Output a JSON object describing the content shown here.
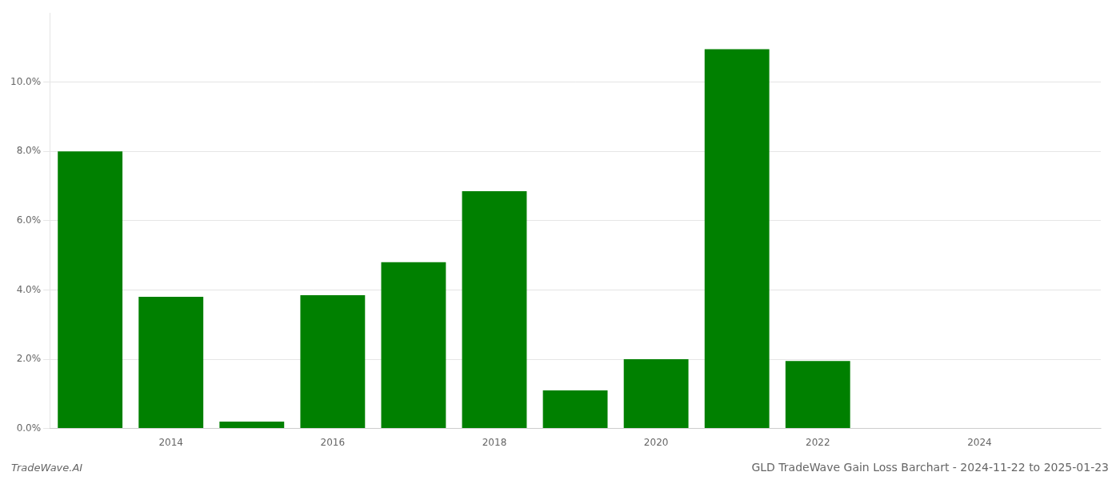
{
  "chart_data": {
    "type": "bar",
    "title": "GLD TradeWave Gain Loss Barchart - 2024-11-22 to 2025-01-23",
    "annotations": [
      "TradeWave.AI"
    ],
    "x": [
      2013,
      2014,
      2015,
      2016,
      2017,
      2018,
      2019,
      2020,
      2021,
      2022,
      2023
    ],
    "values": [
      0.08,
      0.038,
      0.002,
      0.0385,
      0.048,
      0.0685,
      0.011,
      0.02,
      0.1095,
      0.0195,
      0.0
    ],
    "color": "#008000",
    "xlim": [
      2012.5,
      2025.5
    ],
    "xticks": [
      2014,
      2016,
      2018,
      2020,
      2022,
      2024
    ],
    "ylim": [
      0,
      0.12
    ],
    "yticks": [
      {
        "value": 0.0,
        "label": "0.0%"
      },
      {
        "value": 0.02,
        "label": "2.0%"
      },
      {
        "value": 0.04,
        "label": "4.0%"
      },
      {
        "value": 0.06,
        "label": "6.0%"
      },
      {
        "value": 0.08,
        "label": "8.0%"
      },
      {
        "value": 0.1,
        "label": "10.0%"
      }
    ],
    "grid": "y"
  }
}
